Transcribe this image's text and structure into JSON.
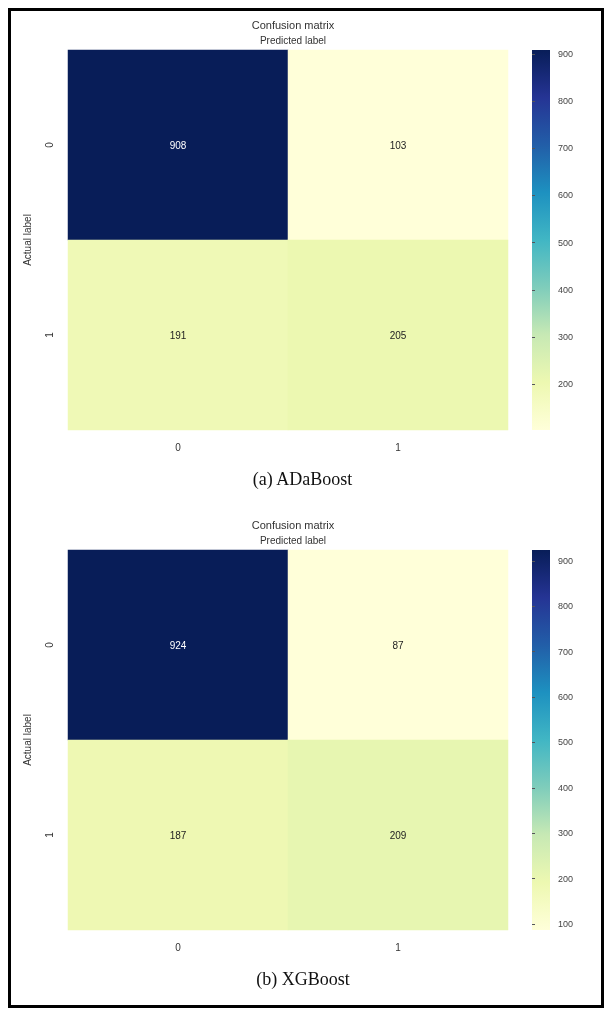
{
  "chart_data": [
    {
      "type": "heatmap",
      "title": "Confusion matrix",
      "xlabel": "Predicted label",
      "ylabel": "Actual label",
      "categories": [
        "0",
        "1"
      ],
      "y_categories": [
        "0",
        "1"
      ],
      "cells": [
        [
          908,
          103
        ],
        [
          191,
          205
        ]
      ],
      "clim": [
        103,
        908
      ],
      "cticks": [
        200,
        300,
        400,
        500,
        600,
        700,
        800,
        900
      ],
      "data_labels": true,
      "annotations": [
        "(a) ADaBoost"
      ]
    },
    {
      "type": "heatmap",
      "title": "Confusion matrix",
      "xlabel": "Predicted label",
      "ylabel": "Actual label",
      "categories": [
        "0",
        "1"
      ],
      "y_categories": [
        "0",
        "1"
      ],
      "cells": [
        [
          924,
          87
        ],
        [
          187,
          209
        ]
      ],
      "clim": [
        87,
        924
      ],
      "cticks": [
        100,
        200,
        300,
        400,
        500,
        600,
        700,
        800,
        900
      ],
      "data_labels": true,
      "annotations": [
        "(b) XGBoost"
      ]
    }
  ]
}
